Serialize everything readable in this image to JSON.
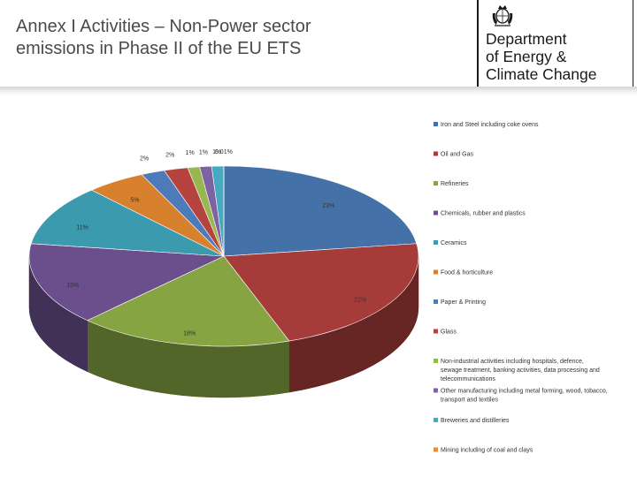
{
  "slide": {
    "title_line1": "Annex I Activities – Non-Power sector",
    "title_line2": "emissions in Phase II of the EU ETS"
  },
  "logo": {
    "line1": "Department",
    "line2": "of Energy &",
    "line3": "Climate Change",
    "crest": "royal-coat-of-arms"
  },
  "chart_data": {
    "type": "pie",
    "three_d": true,
    "legend_position": "right",
    "slices": [
      {
        "name": "Iron and Steel including coke ovens",
        "value": 23,
        "label": "23%",
        "color": "#4472a8"
      },
      {
        "name": "Oil and Gas",
        "value": 22,
        "label": "22%",
        "color": "#a63c3a"
      },
      {
        "name": "Refineries",
        "value": 18,
        "label": "18%",
        "color": "#86a442"
      },
      {
        "name": "Chemicals, rubber and plastics",
        "value": 15,
        "label": "15%",
        "color": "#6a4f8c"
      },
      {
        "name": "Ceramics",
        "value": 11,
        "label": "11%",
        "color": "#3b9aad"
      },
      {
        "name": "Food & horticulture",
        "value": 5,
        "label": "5%",
        "color": "#d7812f"
      },
      {
        "name": "Paper & Printing",
        "value": 2,
        "label": "2%",
        "color": "#4d7ab8"
      },
      {
        "name": "Glass",
        "value": 2,
        "label": "2%",
        "color": "#b5443f"
      },
      {
        "name": "Non-industrial activities including hospitals, defence, sewage treatment, banking activities, data processing and telecommunications",
        "value": 1,
        "label": "1%",
        "color": "#97b84e"
      },
      {
        "name": "Other manufacturing including metal forming, wood, tobacco, transport and textiles",
        "value": 1,
        "label": "1%",
        "color": "#7e62a2"
      },
      {
        "name": "Breweries and distilleries",
        "value": 1,
        "label": "1%",
        "color": "#47a9c0"
      },
      {
        "name": "Mining including of coal and clays",
        "value": 0.01,
        "label": "0.01%",
        "color": "#e48f3a"
      }
    ]
  }
}
